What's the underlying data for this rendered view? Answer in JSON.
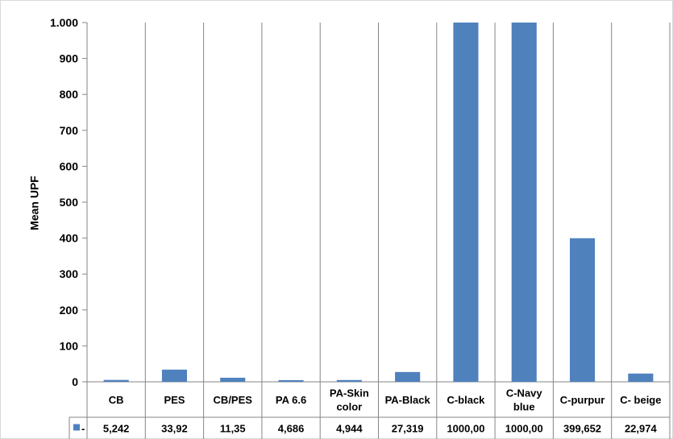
{
  "chart_data": {
    "type": "bar",
    "ylabel": "Mean UPF",
    "ylim": [
      0,
      1000
    ],
    "y_ticks": [
      0,
      100,
      200,
      300,
      400,
      500,
      600,
      700,
      800,
      900,
      1000
    ],
    "y_tick_labels": [
      "0",
      "100",
      "200",
      "300",
      "400",
      "500",
      "600",
      "700",
      "800",
      "900",
      "1.000"
    ],
    "categories": [
      [
        "CB"
      ],
      [
        "PES"
      ],
      [
        "CB/PES"
      ],
      [
        "PA 6.6"
      ],
      [
        "PA-Skin",
        "color"
      ],
      [
        "PA-Black"
      ],
      [
        "C-black"
      ],
      [
        "C-Navy",
        "blue"
      ],
      [
        "C-purpur"
      ],
      [
        "C- beige"
      ]
    ],
    "series": [
      {
        "name": "-",
        "color": "#4f81bd",
        "values": [
          5.242,
          33.92,
          11.35,
          4.686,
          4.944,
          27.319,
          1000,
          1000,
          399.652,
          22.974
        ],
        "value_labels": [
          "5,242",
          "33,92",
          "11,35",
          "4,686",
          "4,944",
          "27,319",
          "1000,00",
          "1000,00",
          "399,652",
          "22,974"
        ]
      }
    ],
    "grid": "vertical category lines",
    "legend": "data-table",
    "colors": {
      "bar": "#4f81bd",
      "gridline": "#868686"
    }
  }
}
